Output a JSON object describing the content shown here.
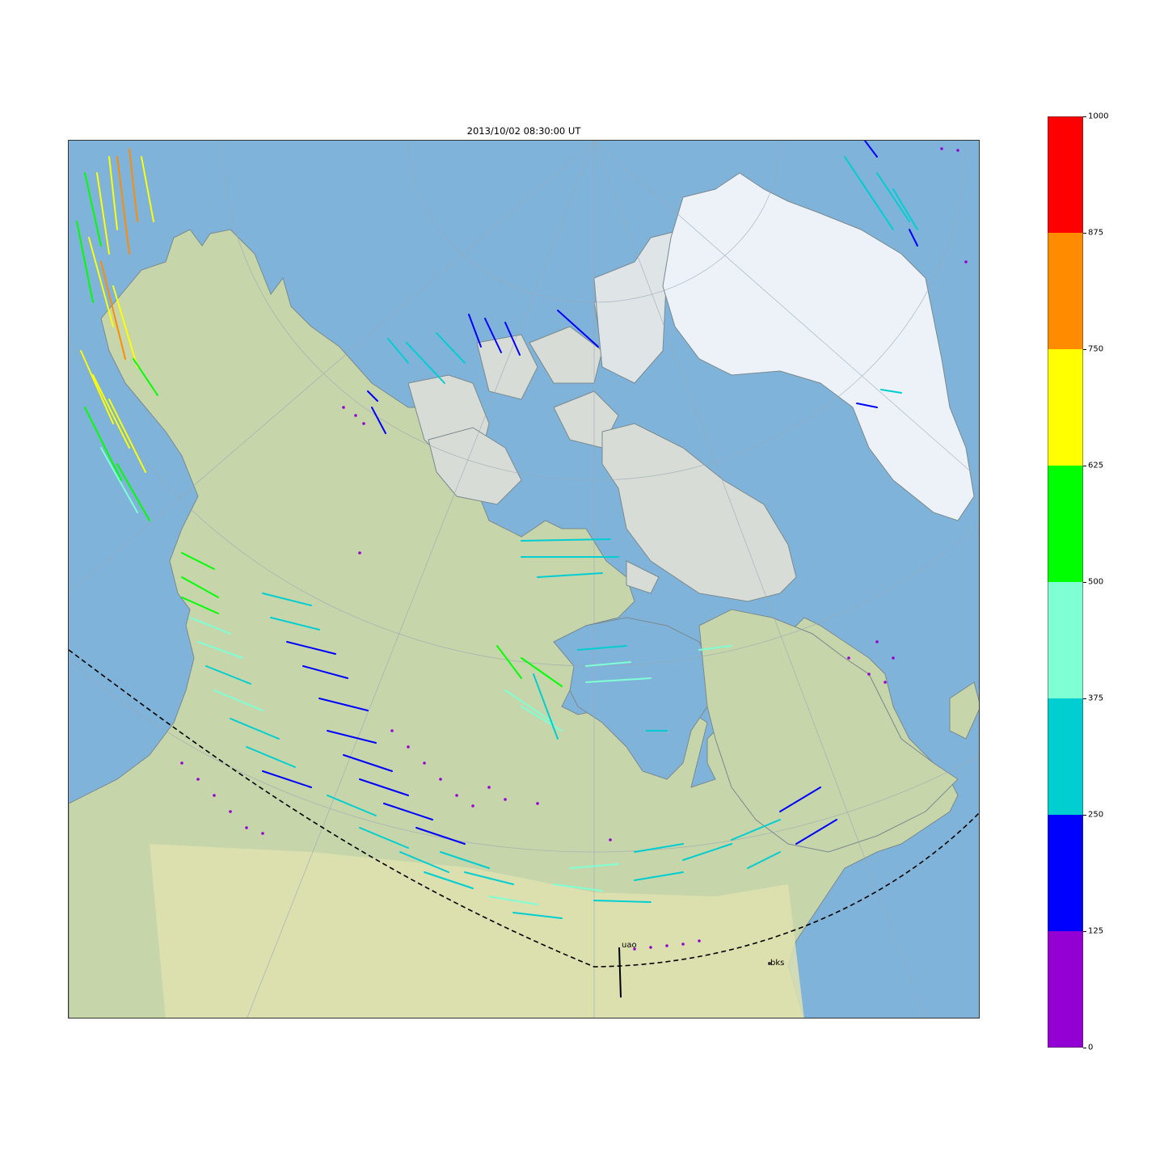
{
  "title": "2013/10/02 08:30:00 UT",
  "map": {
    "ocean_color": "#7fb3d9",
    "land_color": "#c9d6ad",
    "ice_color": "#edf2f8",
    "stations": [
      {
        "code": "uao"
      },
      {
        "code": "bks"
      }
    ]
  },
  "colorbar": {
    "ticks": [
      "0",
      "125",
      "250",
      "375",
      "500",
      "625",
      "750",
      "875",
      "1000"
    ],
    "colors": [
      "#9400d3",
      "#0000ff",
      "#00ced1",
      "#7fffd4",
      "#00ff00",
      "#ffff00",
      "#ff8c00",
      "#ff0000"
    ]
  }
}
